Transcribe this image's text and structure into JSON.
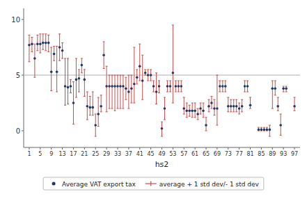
{
  "chart_data": {
    "type": "scatter",
    "xlabel": "hs2",
    "x": [
      1,
      2,
      3,
      4,
      5,
      6,
      7,
      8,
      9,
      10,
      11,
      12,
      13,
      14,
      15,
      16,
      17,
      18,
      19,
      20,
      21,
      22,
      23,
      24,
      25,
      26,
      27,
      28,
      29,
      30,
      31,
      32,
      33,
      34,
      35,
      36,
      37,
      38,
      39,
      40,
      41,
      42,
      43,
      44,
      45,
      46,
      47,
      48,
      49,
      50,
      51,
      52,
      53,
      54,
      55,
      56,
      57,
      58,
      59,
      60,
      61,
      62,
      63,
      64,
      65,
      66,
      67,
      68,
      69,
      70,
      71,
      72,
      73,
      74,
      75,
      76,
      77,
      78,
      79,
      80,
      81,
      84,
      85,
      86,
      87,
      88,
      89,
      90,
      91,
      92,
      93,
      94,
      97
    ],
    "series": [
      {
        "name": "Average VAT export tax",
        "color": "#1f3864",
        "marker": "circle",
        "values": [
          7.7,
          7.8,
          6.5,
          7.8,
          7.8,
          7.9,
          7.9,
          7.9,
          5.3,
          6.9,
          5.3,
          7.5,
          7.2,
          4.0,
          3.9,
          4.0,
          2.5,
          4.6,
          4.7,
          5.9,
          4.6,
          2.2,
          2.1,
          2.1,
          0.5,
          1.5,
          2.2,
          6.8,
          4.0,
          4.0,
          4.0,
          4.0,
          4.0,
          4.0,
          4.0,
          3.8,
          3.5,
          3.8,
          4.2,
          4.8,
          5.8,
          4.5,
          5.2,
          5.0,
          5.0,
          4.0,
          3.5,
          4.0,
          0.2,
          2.0,
          4.0,
          4.0,
          5.2,
          4.0,
          4.0,
          4.0,
          2.0,
          1.8,
          1.8,
          1.8,
          1.8,
          1.5,
          2.0,
          1.8,
          0.5,
          2.2,
          2.5,
          2.0,
          2.0,
          4.0,
          4.0,
          4.0,
          2.2,
          2.2,
          2.2,
          2.2,
          2.0,
          2.2,
          4.0,
          4.0,
          2.3,
          0.1,
          0.1,
          0.1,
          0.1,
          0.1,
          3.8,
          3.8,
          2.2,
          0.5,
          3.8,
          3.8,
          2.2
        ]
      },
      {
        "name": "average + 1 std dev/- 1 std dev",
        "type": "errorbar",
        "color": "#c0504d",
        "upper": [
          8.6,
          8.4,
          7.8,
          8.6,
          8.7,
          8.7,
          8.7,
          8.6,
          7.5,
          7.6,
          7.6,
          8.7,
          7.9,
          6.5,
          6.5,
          4.6,
          4.4,
          6.5,
          5.5,
          6.5,
          5.5,
          3.5,
          3.1,
          3.5,
          1.5,
          3.0,
          3.2,
          8.0,
          5.8,
          5.0,
          5.0,
          5.0,
          5.0,
          5.0,
          5.0,
          4.8,
          5.0,
          5.0,
          7.5,
          5.5,
          7.8,
          6.8,
          5.5,
          5.5,
          5.5,
          4.5,
          5.2,
          4.5,
          0.8,
          3.0,
          4.5,
          4.5,
          9.5,
          4.5,
          4.5,
          4.5,
          3.0,
          2.5,
          2.3,
          2.5,
          2.5,
          2.0,
          2.5,
          2.5,
          1.2,
          2.8,
          3.1,
          2.8,
          5.0,
          4.5,
          4.5,
          4.5,
          3.0,
          2.8,
          2.8,
          2.8,
          2.5,
          2.8,
          4.5,
          4.5,
          3.0,
          0.3,
          0.3,
          0.3,
          0.3,
          0.5,
          4.5,
          4.5,
          3.0,
          1.5,
          4.0,
          4.0,
          3.0
        ],
        "lower": [
          6.2,
          7.1,
          4.8,
          7.2,
          7.0,
          7.3,
          7.2,
          7.1,
          3.6,
          6.3,
          3.5,
          6.3,
          6.5,
          2.3,
          2.4,
          3.4,
          0.6,
          3.0,
          3.5,
          5.2,
          3.1,
          1.0,
          1.4,
          1.4,
          -0.5,
          0.4,
          1.7,
          5.6,
          1.7,
          2.0,
          2.0,
          1.8,
          2.0,
          2.0,
          2.0,
          2.8,
          2.0,
          2.5,
          2.5,
          4.2,
          4.5,
          2.8,
          5.0,
          4.5,
          4.5,
          3.5,
          2.4,
          3.4,
          -0.5,
          1.0,
          3.5,
          3.5,
          2.5,
          3.5,
          3.5,
          3.5,
          1.5,
          1.2,
          1.3,
          1.2,
          1.2,
          1.0,
          1.5,
          1.2,
          0.0,
          1.7,
          2.0,
          1.4,
          0.5,
          3.5,
          3.5,
          3.5,
          1.7,
          1.7,
          1.7,
          1.7,
          1.5,
          1.7,
          3.5,
          3.5,
          2.0,
          0.0,
          0.0,
          0.0,
          0.0,
          -0.5,
          2.0,
          3.2,
          1.8,
          -0.4,
          3.5,
          3.5,
          1.8
        ]
      }
    ],
    "hline": {
      "value": 5,
      "color": "#b0b0b0"
    },
    "xlim": [
      -1,
      99
    ],
    "xticks": [
      1,
      5,
      9,
      13,
      17,
      21,
      25,
      29,
      33,
      37,
      41,
      45,
      49,
      53,
      57,
      61,
      65,
      69,
      73,
      77,
      81,
      85,
      89,
      93,
      97
    ],
    "ylim": [
      -1.5,
      11.0
    ],
    "yticks": [
      0,
      5,
      10
    ],
    "grid": false,
    "legend": "bottom"
  }
}
